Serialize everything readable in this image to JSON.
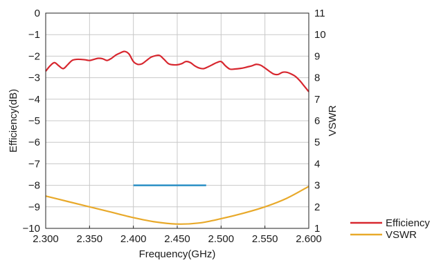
{
  "chart_data": {
    "type": "line",
    "xlabel": "Frequency(GHz)",
    "ylabel_left": "Efficiency(dB)",
    "ylabel_right": "VSWR",
    "xlim": [
      2.3,
      2.6
    ],
    "ylim_left": [
      -10,
      0
    ],
    "ylim_right": [
      1,
      11
    ],
    "x_ticks": [
      "2.300",
      "2.350",
      "2.400",
      "2.450",
      "2.500",
      "2.550",
      "2.600"
    ],
    "y_left_ticks": [
      "0",
      "−1",
      "−2",
      "−3",
      "−4",
      "−5",
      "−6",
      "−7",
      "−8",
      "−9",
      "−10"
    ],
    "y_right_ticks": [
      "11",
      "10",
      "9",
      "8",
      "7",
      "6",
      "5",
      "4",
      "3",
      "2",
      "1"
    ],
    "grid": true,
    "legend_position": "bottom-right",
    "series": [
      {
        "name": "Efficiency",
        "axis": "left",
        "color": "#d7262e",
        "x": [
          2.3,
          2.305,
          2.31,
          2.315,
          2.32,
          2.325,
          2.33,
          2.335,
          2.34,
          2.345,
          2.35,
          2.355,
          2.36,
          2.365,
          2.37,
          2.375,
          2.38,
          2.385,
          2.39,
          2.395,
          2.4,
          2.405,
          2.41,
          2.415,
          2.42,
          2.425,
          2.43,
          2.435,
          2.44,
          2.445,
          2.45,
          2.455,
          2.46,
          2.465,
          2.47,
          2.475,
          2.48,
          2.485,
          2.49,
          2.495,
          2.5,
          2.505,
          2.51,
          2.515,
          2.52,
          2.525,
          2.53,
          2.535,
          2.54,
          2.545,
          2.55,
          2.555,
          2.56,
          2.565,
          2.57,
          2.575,
          2.58,
          2.585,
          2.59,
          2.595,
          2.6
        ],
        "values": [
          -2.7,
          -2.45,
          -2.3,
          -2.45,
          -2.58,
          -2.4,
          -2.2,
          -2.15,
          -2.15,
          -2.17,
          -2.2,
          -2.15,
          -2.1,
          -2.12,
          -2.2,
          -2.1,
          -1.95,
          -1.85,
          -1.78,
          -1.9,
          -2.25,
          -2.38,
          -2.35,
          -2.2,
          -2.05,
          -1.98,
          -1.97,
          -2.15,
          -2.35,
          -2.4,
          -2.4,
          -2.35,
          -2.25,
          -2.3,
          -2.45,
          -2.55,
          -2.58,
          -2.5,
          -2.4,
          -2.3,
          -2.25,
          -2.45,
          -2.6,
          -2.6,
          -2.58,
          -2.55,
          -2.5,
          -2.45,
          -2.38,
          -2.42,
          -2.55,
          -2.7,
          -2.83,
          -2.85,
          -2.75,
          -2.75,
          -2.83,
          -2.95,
          -3.15,
          -3.4,
          -3.65
        ]
      },
      {
        "name": "VSWR",
        "axis": "right",
        "color": "#e8a92a",
        "x": [
          2.3,
          2.325,
          2.35,
          2.375,
          2.4,
          2.425,
          2.45,
          2.475,
          2.5,
          2.525,
          2.55,
          2.575,
          2.6
        ],
        "values": [
          2.5,
          2.25,
          2.0,
          1.75,
          1.5,
          1.3,
          1.2,
          1.25,
          1.45,
          1.7,
          2.0,
          2.4,
          2.95
        ]
      },
      {
        "name": "",
        "axis": "left",
        "color": "#2a8fc5",
        "x": [
          2.4,
          2.483
        ],
        "values": [
          -8.0,
          -8.0
        ]
      }
    ]
  }
}
